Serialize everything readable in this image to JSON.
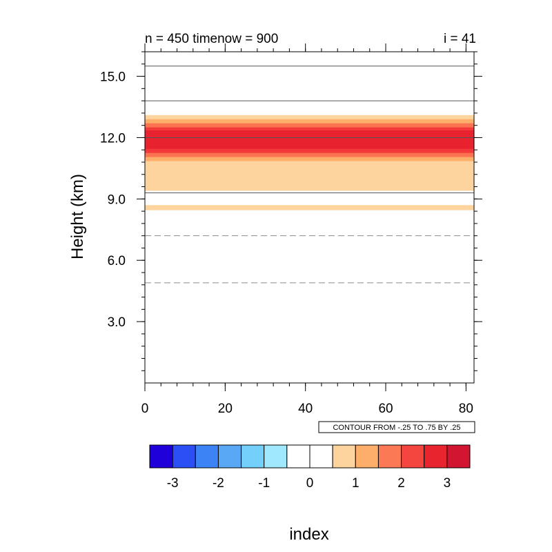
{
  "chart_data": {
    "type": "heatmap",
    "title_left": "n = 450 timenow = 900",
    "title_right": "i = 41",
    "xlabel": "index",
    "ylabel": "Height (km)",
    "xlim": [
      0,
      82
    ],
    "ylim": [
      0,
      16.2
    ],
    "x_ticks": [
      0,
      20,
      40,
      60,
      80
    ],
    "x_tick_labels": [
      "0",
      "20",
      "40",
      "60",
      "80"
    ],
    "y_ticks": [
      3,
      6,
      9,
      12,
      15
    ],
    "y_tick_labels": [
      "3.0",
      "6.0",
      "9.0",
      "12.0",
      "15.0"
    ],
    "contour_info": "CONTOUR FROM -.25 TO .75 BY .25",
    "bands": [
      {
        "y0": 8.45,
        "y1": 8.7,
        "color": "#fdd49e"
      },
      {
        "y0": 9.4,
        "y1": 13.1,
        "color": "#fdd49e"
      },
      {
        "y0": 10.85,
        "y1": 12.9,
        "color": "#fdae6b"
      },
      {
        "y0": 11.05,
        "y1": 12.7,
        "color": "#fb7350"
      },
      {
        "y0": 11.25,
        "y1": 12.5,
        "color": "#f4393a"
      },
      {
        "y0": 11.45,
        "y1": 12.35,
        "color": "#e8222e"
      }
    ],
    "contour_lines": [
      {
        "y": 4.9,
        "style": "dashed"
      },
      {
        "y": 7.2,
        "style": "dashed"
      },
      {
        "y": 9.3,
        "style": "solid"
      },
      {
        "y": 12.0,
        "style": "solid"
      },
      {
        "y": 13.8,
        "style": "solid"
      },
      {
        "y": 15.5,
        "style": "solid"
      }
    ],
    "colorbar": {
      "colors": [
        "#1f00d8",
        "#2a50f5",
        "#3c84f5",
        "#58a8f5",
        "#72d0fa",
        "#a0e8fc",
        "#ffffff",
        "#ffffff",
        "#fdd49e",
        "#fdae6b",
        "#fb7a55",
        "#f4453f",
        "#e8242e",
        "#d21530"
      ],
      "tick_values": [
        -3,
        -2,
        -1,
        0,
        1,
        2,
        3
      ],
      "tick_labels": [
        "-3",
        "-2",
        "-1",
        "0",
        "1",
        "2",
        "3"
      ]
    }
  }
}
